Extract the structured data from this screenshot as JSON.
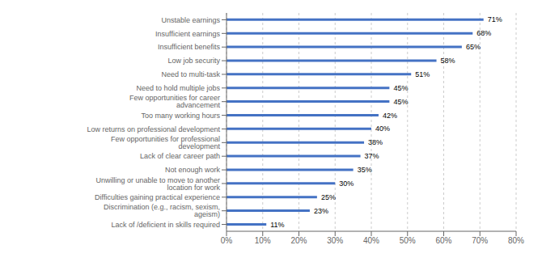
{
  "chart_data": {
    "type": "bar",
    "orientation": "horizontal",
    "categories": [
      "Lack of /deficient in skills required",
      "Discrimination (e.g., racism, sexism, ageism)",
      "Difficulties gaining practical experience",
      "Unwilling or unable to move to another location for work",
      "Not enough work",
      "Lack of clear career path",
      "Few opportunities for professional development",
      "Low returns on professional development",
      "Too many working hours",
      "Few opportunities for career advancement",
      "Need to hold multiple jobs",
      "Need to multi-task",
      "Low job security",
      "Insufficient benefits",
      "Insufficient earnings",
      "Unstable earnings"
    ],
    "values": [
      11,
      23,
      25,
      30,
      35,
      37,
      38,
      40,
      42,
      45,
      45,
      51,
      58,
      65,
      68,
      71
    ],
    "value_labels": [
      "11%",
      "23%",
      "25%",
      "30%",
      "35%",
      "37%",
      "38%",
      "40%",
      "42%",
      "45%",
      "45%",
      "51%",
      "58%",
      "65%",
      "68%",
      "71%"
    ],
    "data_labels": true,
    "color": "#4472C4",
    "xlim": [
      0,
      80
    ],
    "xticks": [
      {
        "value": 0,
        "label": "0%"
      },
      {
        "value": 10,
        "label": "10%"
      },
      {
        "value": 20,
        "label": "20%"
      },
      {
        "value": 30,
        "label": "30%"
      },
      {
        "value": 40,
        "label": "40%"
      },
      {
        "value": 50,
        "label": "50%"
      },
      {
        "value": 60,
        "label": "60%"
      },
      {
        "value": 70,
        "label": "70%"
      },
      {
        "value": 80,
        "label": "80%"
      }
    ],
    "grid": true
  }
}
